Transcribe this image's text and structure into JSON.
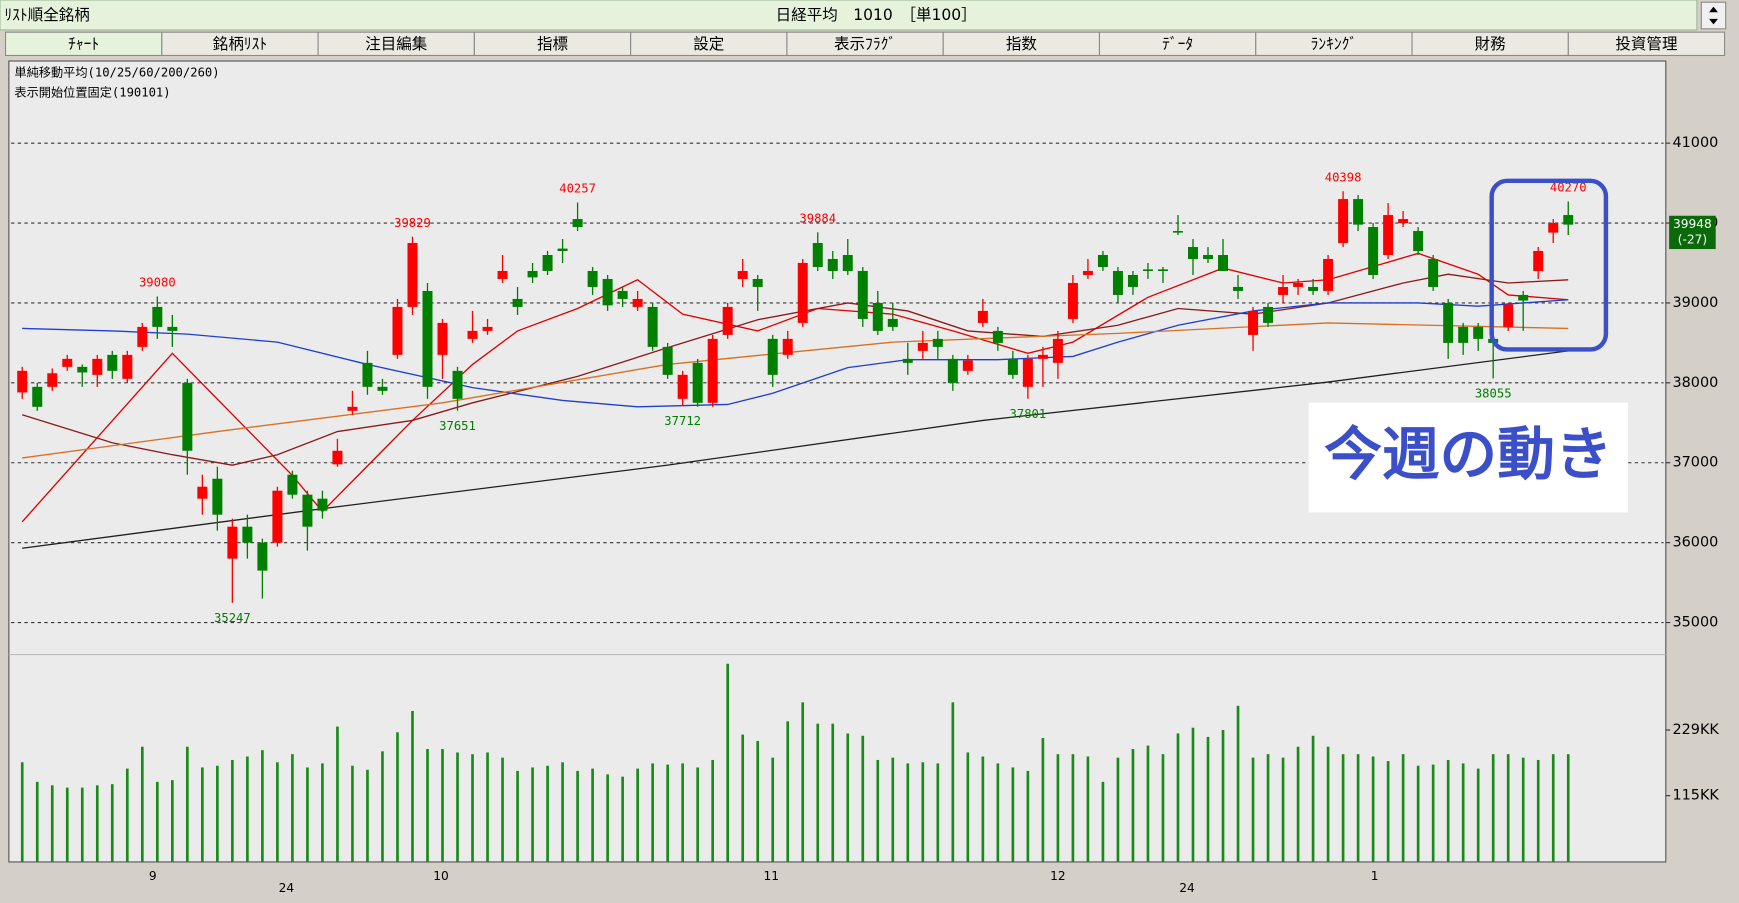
{
  "header": {
    "list_label": "ﾘｽﾄ順全銘柄",
    "title": "日経平均　1010　［単100］"
  },
  "tabs": [
    "ﾁｬｰﾄ",
    "銘柄ﾘｽﾄ",
    "注目編集",
    "指標",
    "設定",
    "表示ﾌﾗｸﾞ",
    "指数",
    "ﾃﾞｰﾀ",
    "ﾗﾝｷﾝｸﾞ",
    "財務",
    "投資管理"
  ],
  "overlay_label": "今週の動き",
  "chart_data": {
    "type": "candlestick",
    "indicator_label": "単純移動平均(10/25/60/200/260)",
    "start_label": "表示開始位置固定(190101)",
    "up_color": "#ff0000",
    "down_color": "#008000",
    "volume_color": "#1a8a1a",
    "xlim": [
      -0.89,
      109.5
    ],
    "xticks": [
      {
        "value": 8.7,
        "label": "9"
      },
      {
        "value": 27.9,
        "label": "10"
      },
      {
        "value": 49.9,
        "label": "11"
      },
      {
        "value": 69.0,
        "label": "12"
      },
      {
        "value": 90.1,
        "label": "1"
      }
    ],
    "xticks2": [
      {
        "value": 17.6,
        "label": "24"
      },
      {
        "value": 77.6,
        "label": "24"
      }
    ],
    "ylim": [
      34600,
      42000
    ],
    "yticks": [
      35000,
      36000,
      37000,
      38000,
      39000,
      40000,
      41000
    ],
    "grid": true,
    "volume_ylim": [
      0,
      360
    ],
    "volume_ticks": [
      {
        "value": 115,
        "label": "115KK"
      },
      {
        "value": 229,
        "label": "229KK"
      }
    ],
    "last_price_label": "39948",
    "last_change_label": "(-27)",
    "high_labels": [
      39080,
      39829,
      40257,
      39884,
      40398,
      40270
    ],
    "low_labels": [
      35247,
      37651,
      37712,
      37801,
      38055
    ],
    "open": [
      37880,
      37950,
      37950,
      38200,
      38200,
      38100,
      38350,
      38050,
      38450,
      38950,
      38700,
      38000,
      36550,
      36800,
      35800,
      36200,
      36000,
      36000,
      36850,
      36600,
      36550,
      36980,
      37650,
      38250,
      37950,
      38350,
      38950,
      39150,
      38350,
      38150,
      38550,
      38650,
      39300,
      39050,
      39400,
      39600,
      39680,
      40050,
      39400,
      39300,
      39150,
      38950,
      38950,
      38450,
      37800,
      38250,
      37750,
      38600,
      39300,
      39300,
      38550,
      38350,
      38750,
      39750,
      39550,
      39600,
      39400,
      39000,
      38800,
      38300,
      38400,
      38550,
      38300,
      38150,
      38750,
      38650,
      38300,
      37950,
      38300,
      38250,
      38800,
      39350,
      39600,
      39400,
      39350,
      39420,
      39420,
      39900,
      39700,
      39600,
      39600,
      39200,
      38600,
      38950,
      39100,
      39200,
      39200,
      39150,
      39750,
      40300,
      39950,
      39600,
      40000,
      39900,
      39550,
      39000,
      38700,
      38700,
      38550,
      38700,
      39100,
      39400,
      39880,
      40100
    ],
    "high": [
      38200,
      38000,
      38180,
      38350,
      38230,
      38350,
      38400,
      38400,
      38750,
      39080,
      38850,
      38050,
      36850,
      36950,
      36300,
      36350,
      36050,
      36700,
      36900,
      36650,
      36650,
      37300,
      37900,
      38400,
      38050,
      39050,
      39829,
      39250,
      38800,
      38200,
      38900,
      38800,
      39600,
      39200,
      39500,
      39650,
      39800,
      40257,
      39450,
      39350,
      39200,
      39150,
      39000,
      38500,
      38150,
      38300,
      38600,
      39000,
      39550,
      39350,
      38600,
      38650,
      39550,
      39884,
      39650,
      39800,
      39450,
      39150,
      39000,
      38500,
      38650,
      38650,
      38350,
      38350,
      39050,
      38700,
      38400,
      38350,
      38450,
      38650,
      39350,
      39550,
      39650,
      39450,
      39400,
      39500,
      39450,
      40100,
      39800,
      39700,
      39800,
      39350,
      38950,
      39000,
      39350,
      39300,
      39300,
      39600,
      40398,
      40350,
      40000,
      40250,
      40150,
      39950,
      39600,
      39050,
      38750,
      38750,
      38650,
      39000,
      39150,
      39700,
      40050,
      40270
    ],
    "low": [
      37800,
      37650,
      37900,
      38150,
      37950,
      37950,
      38050,
      38000,
      38400,
      38550,
      38450,
      36850,
      36350,
      36150,
      35247,
      35800,
      35300,
      35950,
      36550,
      35900,
      36300,
      36950,
      37600,
      37850,
      37850,
      38300,
      38850,
      37800,
      38050,
      37651,
      38500,
      38600,
      39250,
      38850,
      39250,
      39350,
      39500,
      39900,
      39100,
      38900,
      38950,
      38900,
      38400,
      38050,
      37712,
      37700,
      37700,
      38550,
      39200,
      38900,
      37950,
      38300,
      38700,
      39400,
      39300,
      39350,
      38700,
      38600,
      38650,
      38100,
      38300,
      38300,
      37900,
      38100,
      38700,
      38400,
      38050,
      37801,
      37950,
      38050,
      38750,
      39300,
      39400,
      39000,
      39100,
      39300,
      39250,
      39850,
      39350,
      39500,
      39400,
      39050,
      38400,
      38700,
      39000,
      39100,
      39100,
      39100,
      39700,
      39900,
      39300,
      39550,
      39950,
      39600,
      39150,
      38300,
      38350,
      38400,
      38055,
      38650,
      38650,
      39300,
      39750,
      39850
    ],
    "close": [
      38150,
      37700,
      38120,
      38300,
      38130,
      38300,
      38150,
      38350,
      38700,
      38700,
      38650,
      37150,
      36700,
      36350,
      36200,
      36000,
      35650,
      36650,
      36600,
      36200,
      36400,
      37150,
      37700,
      37950,
      37900,
      38950,
      39750,
      37950,
      38750,
      37800,
      38650,
      38700,
      39400,
      38950,
      39320,
      39400,
      39650,
      39950,
      39200,
      38970,
      39050,
      39050,
      38450,
      38100,
      38100,
      37750,
      38550,
      38950,
      39400,
      39200,
      38100,
      38550,
      39500,
      39450,
      39400,
      39400,
      38800,
      38650,
      38700,
      38250,
      38500,
      38450,
      38000,
      38280,
      38900,
      38500,
      38100,
      38300,
      38350,
      38550,
      39250,
      39400,
      39450,
      39100,
      39200,
      39400,
      39400,
      39880,
      39550,
      39550,
      39400,
      39150,
      38900,
      38750,
      39200,
      39250,
      39150,
      39550,
      40300,
      39980,
      39350,
      40100,
      40050,
      39650,
      39200,
      38500,
      38500,
      38550,
      38500,
      38980,
      39030,
      39650,
      40000,
      39980
    ],
    "volume": [
      173,
      139,
      133,
      129,
      129,
      133,
      135,
      162,
      200,
      139,
      142,
      200,
      164,
      167,
      177,
      183,
      194,
      173,
      187,
      164,
      171,
      235,
      167,
      160,
      192,
      225,
      262,
      196,
      196,
      190,
      187,
      190,
      181,
      158,
      164,
      167,
      173,
      158,
      162,
      152,
      148,
      162,
      171,
      169,
      171,
      164,
      177,
      344,
      221,
      210,
      181,
      244,
      277,
      240,
      240,
      223,
      219,
      177,
      181,
      171,
      173,
      171,
      277,
      190,
      183,
      171,
      164,
      158,
      215,
      187,
      187,
      183,
      139,
      181,
      196,
      202,
      187,
      223,
      233,
      217,
      229,
      271,
      181,
      187,
      181,
      200,
      219,
      200,
      187,
      187,
      183,
      175,
      187,
      167,
      169,
      177,
      171,
      162,
      187,
      187,
      181,
      177,
      187,
      187
    ],
    "series": [
      {
        "color": "#e00000",
        "x": [
          0,
          10,
          18,
          20,
          26,
          30,
          33,
          37,
          41,
          44,
          49,
          53,
          58,
          62,
          67,
          70,
          75,
          80,
          84,
          87,
          93,
          97,
          99,
          103
        ],
        "values": [
          36260,
          38370,
          36840,
          36390,
          37530,
          38230,
          38650,
          38930,
          39290,
          38860,
          38650,
          38930,
          38860,
          38650,
          38370,
          38510,
          39070,
          39435,
          39250,
          39290,
          39620,
          39360,
          39100,
          39040
        ]
      },
      {
        "color": "#8b1a1a",
        "x": [
          0,
          6,
          10,
          14,
          17,
          21,
          26,
          30,
          37,
          43,
          49,
          55,
          59,
          63,
          68,
          73,
          77,
          82,
          87,
          92,
          95,
          99,
          103
        ],
        "values": [
          37600,
          37250,
          37100,
          36970,
          37100,
          37390,
          37530,
          37750,
          38080,
          38440,
          38790,
          39000,
          38900,
          38650,
          38580,
          38720,
          38930,
          38860,
          39000,
          39250,
          39360,
          39250,
          39290
        ]
      },
      {
        "color": "#1f3fd0",
        "x": [
          0,
          6,
          11,
          17,
          23,
          30,
          36,
          41,
          47,
          50,
          55,
          59,
          65,
          70,
          73,
          77,
          82,
          87,
          93,
          97,
          103
        ],
        "values": [
          38680,
          38650,
          38610,
          38510,
          38230,
          37940,
          37780,
          37700,
          37730,
          37870,
          38190,
          38290,
          38290,
          38330,
          38510,
          38720,
          38900,
          39000,
          39000,
          38960,
          39040
        ]
      },
      {
        "color": "#d87020",
        "x": [
          0,
          13,
          28,
          43,
          58,
          73,
          87,
          103
        ],
        "values": [
          37060,
          37390,
          37750,
          38230,
          38510,
          38620,
          38750,
          38680
        ]
      },
      {
        "color": "#202020",
        "x": [
          0,
          21,
          43,
          64,
          87,
          103
        ],
        "values": [
          35930,
          36450,
          36970,
          37530,
          38010,
          38400
        ]
      }
    ]
  }
}
